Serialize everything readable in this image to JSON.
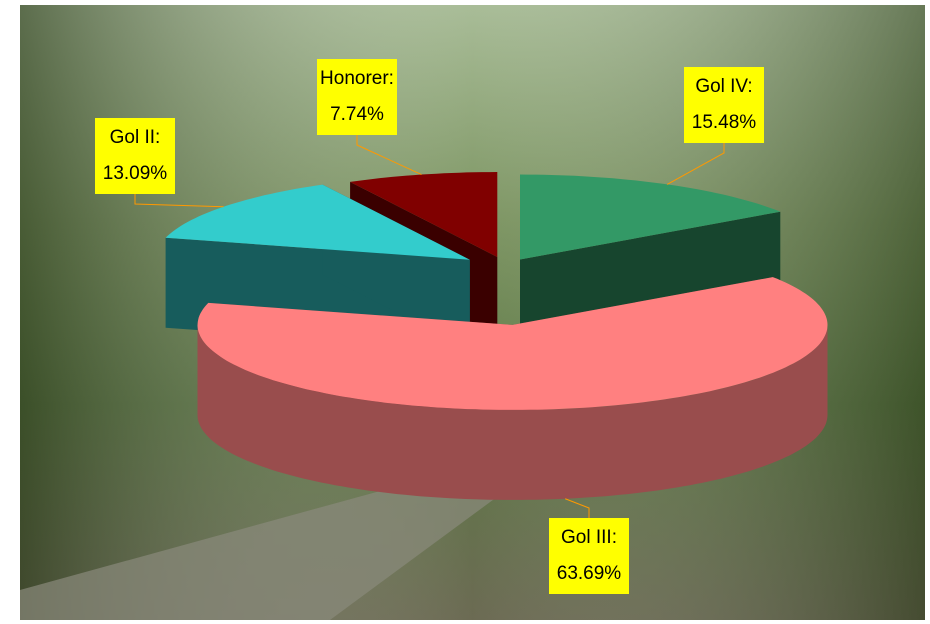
{
  "chart_data": {
    "type": "pie3d",
    "categories": [
      "Gol IV:",
      "Gol III:",
      "Gol II:",
      "Honorer:"
    ],
    "values": [
      15.48,
      63.69,
      13.09,
      7.74
    ],
    "value_labels": [
      "15.48%",
      "63.69%",
      "13.09%",
      "7.74%"
    ],
    "colors": [
      "#339966",
      "#ff8080",
      "#33cccc",
      "#800000"
    ]
  }
}
